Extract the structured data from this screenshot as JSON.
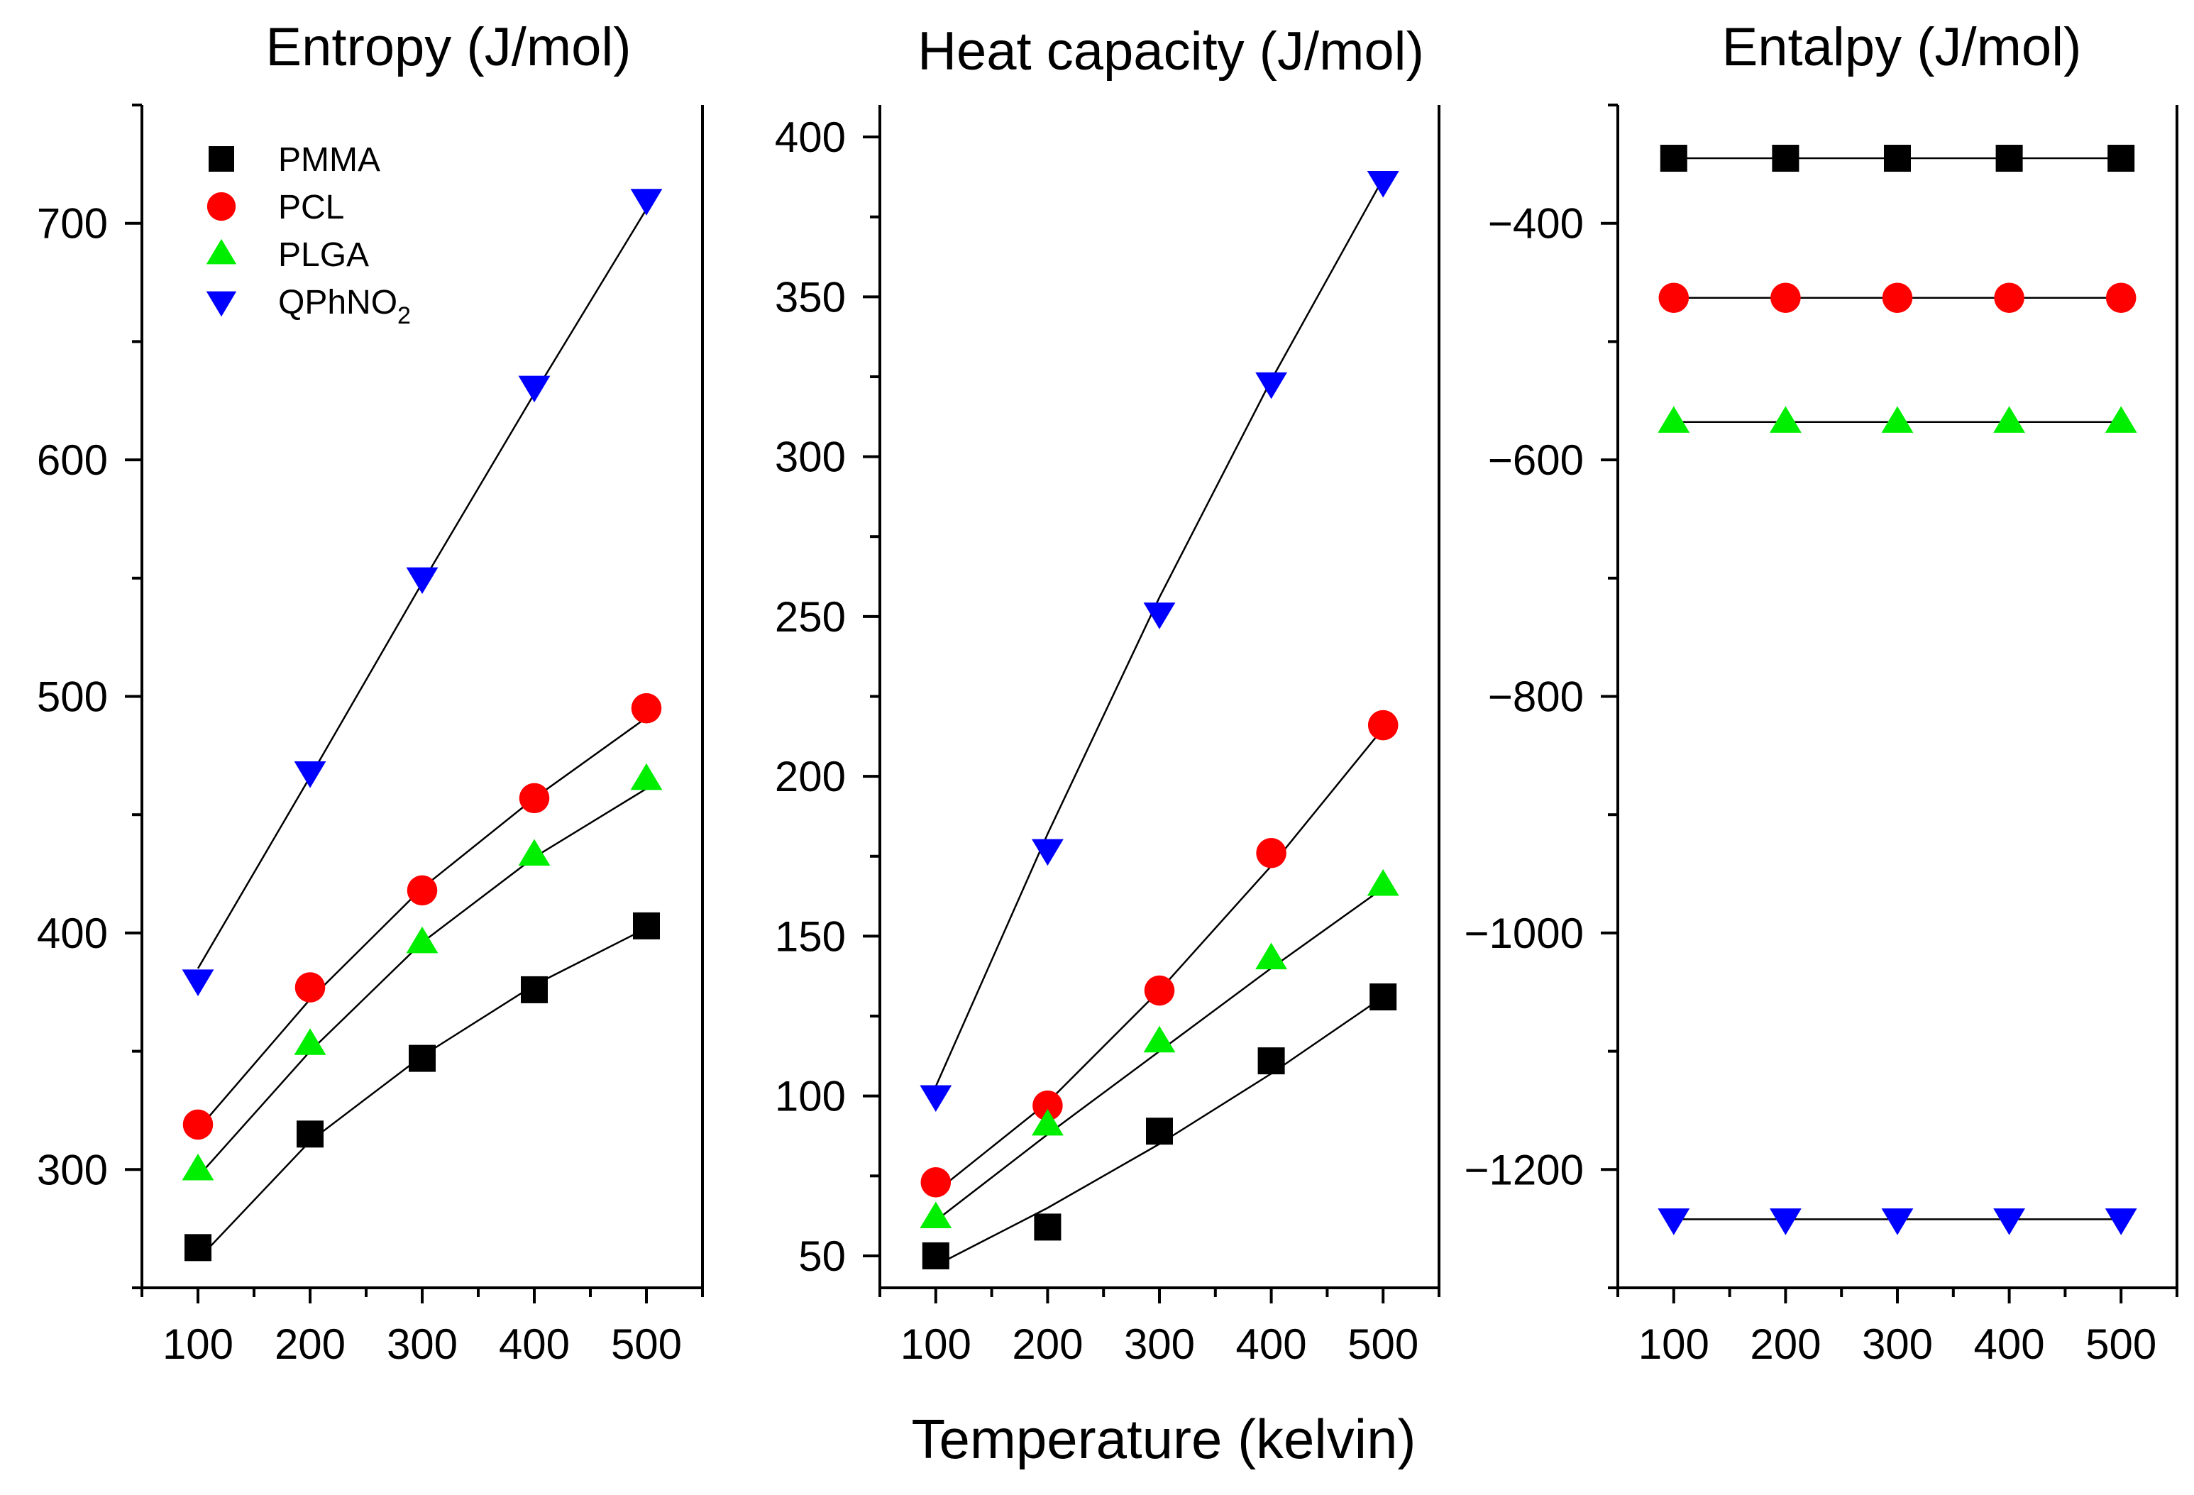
{
  "figure": {
    "xlabel": "Temperature (kelvin)",
    "colors": {
      "PMMA": "#000000",
      "PCL": "#ff0000",
      "PLGA": "#00ee00",
      "QPhNO2": "#0000ff",
      "fit_line": "#000000"
    }
  },
  "legend": {
    "items": [
      {
        "key": "PMMA",
        "label": "PMMA",
        "marker": "square"
      },
      {
        "key": "PCL",
        "label": "PCL",
        "marker": "circle"
      },
      {
        "key": "PLGA",
        "label": "PLGA",
        "marker": "triangle-up"
      },
      {
        "key": "QPhNO2",
        "label": "QPhNO",
        "subscript": "2",
        "marker": "triangle-down"
      }
    ]
  },
  "chart_data": [
    {
      "type": "scatter",
      "title": "Entropy (J/mol)",
      "xlabel": "Temperature (kelvin)",
      "ylabel": "",
      "x": [
        100,
        200,
        300,
        400,
        500
      ],
      "xlim": [
        50,
        550
      ],
      "ylim": [
        250,
        750
      ],
      "xticks": [
        100,
        200,
        300,
        400,
        500
      ],
      "yticks": [
        300,
        400,
        500,
        600,
        700
      ],
      "legend": "top-left",
      "series": [
        {
          "name": "PMMA",
          "marker": "square",
          "values": [
            267,
            315,
            347,
            376,
            403
          ],
          "fit": [
            262,
            312,
            348,
            378,
            402
          ]
        },
        {
          "name": "PCL",
          "marker": "circle",
          "values": [
            319,
            377,
            418,
            457,
            495
          ],
          "fit": [
            317,
            372,
            419,
            457,
            491
          ]
        },
        {
          "name": "PLGA",
          "marker": "triangle-up",
          "values": [
            300,
            353,
            396,
            433,
            465
          ],
          "fit": [
            297,
            350,
            396,
            432,
            461
          ]
        },
        {
          "name": "QPhNO2",
          "marker": "triangle-down",
          "values": [
            380,
            468,
            550,
            631,
            710
          ],
          "fit": [
            385,
            466,
            548,
            628,
            706
          ]
        }
      ]
    },
    {
      "type": "scatter",
      "title": "Heat capacity (J/mol)",
      "xlabel": "Temperature (kelvin)",
      "ylabel": "",
      "x": [
        100,
        200,
        300,
        400,
        500
      ],
      "xlim": [
        50,
        550
      ],
      "ylim": [
        40,
        410
      ],
      "xticks": [
        100,
        200,
        300,
        400,
        500
      ],
      "yticks": [
        50,
        100,
        150,
        200,
        250,
        300,
        350,
        400
      ],
      "series": [
        {
          "name": "PMMA",
          "marker": "square",
          "values": [
            50,
            59,
            89,
            111,
            131
          ],
          "fit": [
            47,
            65,
            85,
            107,
            131
          ]
        },
        {
          "name": "PCL",
          "marker": "circle",
          "values": [
            73,
            97,
            133,
            176,
            216
          ],
          "fit": [
            70,
            98,
            133,
            172,
            215
          ]
        },
        {
          "name": "PLGA",
          "marker": "triangle-up",
          "values": [
            62,
            91,
            117,
            143,
            166
          ],
          "fit": [
            61,
            88,
            114,
            140,
            165
          ]
        },
        {
          "name": "QPhNO2",
          "marker": "triangle-down",
          "values": [
            100,
            177,
            251,
            323,
            386
          ],
          "fit": [
            103,
            182,
            256,
            324,
            387
          ]
        }
      ]
    },
    {
      "type": "scatter",
      "title": "Entalpy (J/mol)",
      "xlabel": "Temperature (kelvin)",
      "ylabel": "",
      "x": [
        100,
        200,
        300,
        400,
        500
      ],
      "xlim": [
        50,
        550
      ],
      "ylim": [
        -1300,
        -300
      ],
      "xticks": [
        100,
        200,
        300,
        400,
        500
      ],
      "yticks": [
        -400,
        -600,
        -800,
        -1000,
        -1200
      ],
      "series": [
        {
          "name": "PMMA",
          "marker": "square",
          "values": [
            -345,
            -345,
            -345,
            -345,
            -345
          ],
          "fit": [
            -345,
            -345,
            -345,
            -345,
            -345
          ]
        },
        {
          "name": "PCL",
          "marker": "circle",
          "values": [
            -463,
            -463,
            -463,
            -463,
            -463
          ],
          "fit": [
            -463,
            -463,
            -463,
            -463,
            -463
          ]
        },
        {
          "name": "PLGA",
          "marker": "triangle-up",
          "values": [
            -568,
            -568,
            -568,
            -568,
            -568
          ],
          "fit": [
            -568,
            -568,
            -568,
            -568,
            -568
          ]
        },
        {
          "name": "QPhNO2",
          "marker": "triangle-down",
          "values": [
            -1242,
            -1242,
            -1242,
            -1242,
            -1242
          ],
          "fit": [
            -1242,
            -1242,
            -1242,
            -1242,
            -1242
          ]
        }
      ]
    }
  ]
}
